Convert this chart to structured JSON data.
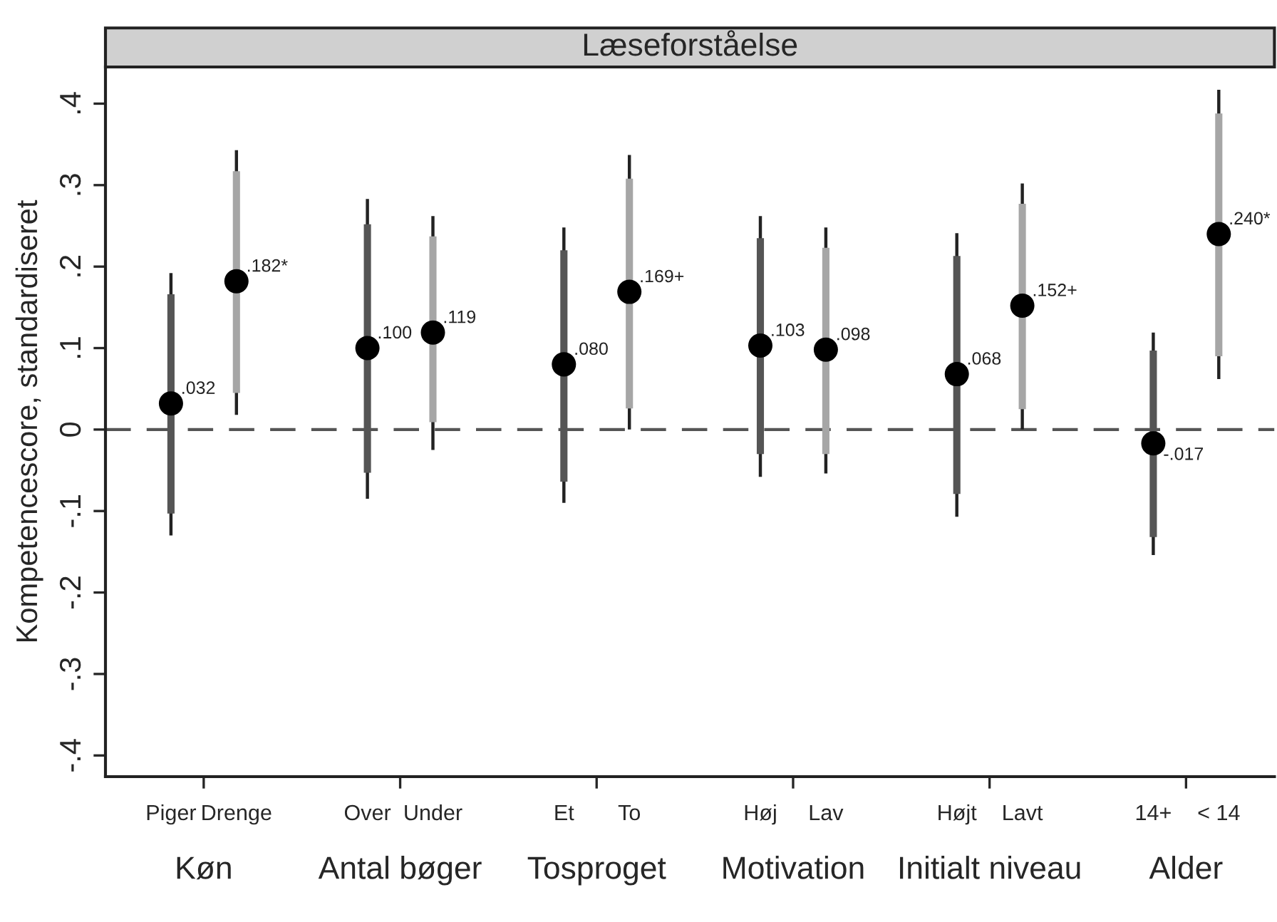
{
  "chart_data": {
    "type": "scatter",
    "title": "Læseforståelse",
    "ylabel": "Kompetencescore, standardiseret",
    "categories": [
      "Piger",
      "Drenge",
      "Over",
      "Under",
      "Et",
      "To",
      "Høj",
      "Lav",
      "Højt",
      "Lavt",
      "14+",
      "< 14"
    ],
    "series": [
      {
        "color": "#000000",
        "values": [
          0.032,
          0.182,
          0.1,
          0.119,
          0.08,
          0.169,
          0.103,
          0.098,
          0.068,
          0.152,
          -0.017,
          0.24
        ],
        "errors": [
          [
            -0.13,
            0.192
          ],
          [
            0.018,
            0.343
          ],
          [
            -0.085,
            0.283
          ],
          [
            -0.025,
            0.262
          ],
          [
            -0.09,
            0.248
          ],
          [
            0.0,
            0.337
          ],
          [
            -0.058,
            0.262
          ],
          [
            -0.054,
            0.248
          ],
          [
            -0.107,
            0.241
          ],
          [
            0.0,
            0.302
          ],
          [
            -0.154,
            0.119
          ],
          [
            0.062,
            0.417
          ]
        ],
        "value_labels": [
          ".032",
          ".182*",
          ".100",
          ".119",
          ".080",
          ".169+",
          ".103",
          ".098",
          ".068",
          ".152+",
          "-.017",
          ".240*"
        ]
      },
      {
        "type": "bar",
        "colors": [
          "#555555",
          "#a6a6a6",
          "#555555",
          "#a6a6a6",
          "#555555",
          "#a6a6a6",
          "#555555",
          "#a6a6a6",
          "#555555",
          "#a6a6a6",
          "#555555",
          "#a6a6a6"
        ],
        "base": [
          -0.103,
          0.045,
          -0.053,
          0.009,
          -0.064,
          0.026,
          -0.03,
          -0.03,
          -0.079,
          0.025,
          -0.132,
          0.09
        ],
        "values": [
          0.269,
          0.272,
          0.305,
          0.228,
          0.284,
          0.282,
          0.265,
          0.253,
          0.292,
          0.252,
          0.229,
          0.298
        ]
      }
    ],
    "ylim": [
      -0.426,
      0.445
    ],
    "yticks": [
      {
        "value": 0.4,
        "label": ".4"
      },
      {
        "value": 0.3,
        "label": ".3"
      },
      {
        "value": 0.2,
        "label": ".2"
      },
      {
        "value": 0.1,
        "label": ".1"
      },
      0,
      {
        "value": -0.1,
        "label": "-.1"
      },
      {
        "value": -0.2,
        "label": "-.2"
      },
      {
        "value": -0.3,
        "label": "-.3"
      },
      {
        "value": -0.4,
        "label": "-.4"
      }
    ],
    "ref_lines": [
      {
        "axis": "y",
        "value": 0,
        "color": "#555555",
        "line_style": "dashed"
      }
    ],
    "annotations": [
      "Køn",
      "Antal bøger",
      "Tosproget",
      "Motivation",
      "Initialt niveau",
      "Alder"
    ],
    "marker": "circle",
    "grid": false,
    "legend": false
  }
}
